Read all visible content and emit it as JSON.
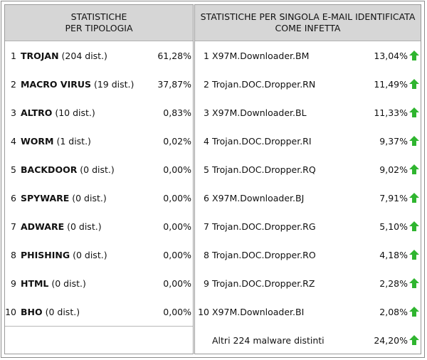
{
  "left": {
    "title_line1": "STATISTICHE",
    "title_line2": "PER TIPOLOGIA",
    "rows": [
      {
        "num": "1",
        "name": "TROJAN",
        "dist": " (204 dist.)",
        "pct": "61,28%"
      },
      {
        "num": "2",
        "name": "MACRO VIRUS",
        "dist": " (19 dist.)",
        "pct": "37,87%"
      },
      {
        "num": "3",
        "name": "ALTRO",
        "dist": " (10 dist.)",
        "pct": "0,83%"
      },
      {
        "num": "4",
        "name": "WORM",
        "dist": " (1 dist.)",
        "pct": "0,02%"
      },
      {
        "num": "5",
        "name": "BACKDOOR",
        "dist": " (0 dist.)",
        "pct": "0,00%"
      },
      {
        "num": "6",
        "name": "SPYWARE",
        "dist": " (0 dist.)",
        "pct": "0,00%"
      },
      {
        "num": "7",
        "name": "ADWARE",
        "dist": " (0 dist.)",
        "pct": "0,00%"
      },
      {
        "num": "8",
        "name": "PHISHING",
        "dist": " (0 dist.)",
        "pct": "0,00%"
      },
      {
        "num": "9",
        "name": "HTML",
        "dist": " (0 dist.)",
        "pct": "0,00%"
      },
      {
        "num": "10",
        "name": "BHO",
        "dist": " (0 dist.)",
        "pct": "0,00%"
      }
    ]
  },
  "right": {
    "title_line1": "STATISTICHE PER SINGOLA E-MAIL IDENTIFICATA",
    "title_line2": "COME INFETTA",
    "arrow_color": "#2fb52f",
    "rows": [
      {
        "num": "1",
        "name": "X97M.Downloader.BM",
        "pct": "13,04%",
        "trend": "up-arrow-icon"
      },
      {
        "num": "2",
        "name": "Trojan.DOC.Dropper.RN",
        "pct": "11,49%",
        "trend": "up-arrow-icon"
      },
      {
        "num": "3",
        "name": "X97M.Downloader.BL",
        "pct": "11,33%",
        "trend": "up-arrow-icon"
      },
      {
        "num": "4",
        "name": "Trojan.DOC.Dropper.RI",
        "pct": "9,37%",
        "trend": "up-arrow-icon"
      },
      {
        "num": "5",
        "name": "Trojan.DOC.Dropper.RQ",
        "pct": "9,02%",
        "trend": "up-arrow-icon"
      },
      {
        "num": "6",
        "name": "X97M.Downloader.BJ",
        "pct": "7,91%",
        "trend": "up-arrow-icon"
      },
      {
        "num": "7",
        "name": "Trojan.DOC.Dropper.RG",
        "pct": "5,10%",
        "trend": "up-arrow-icon"
      },
      {
        "num": "8",
        "name": "Trojan.DOC.Dropper.RO",
        "pct": "4,18%",
        "trend": "up-arrow-icon"
      },
      {
        "num": "9",
        "name": "Trojan.DOC.Dropper.RZ",
        "pct": "2,28%",
        "trend": "up-arrow-icon"
      },
      {
        "num": "10",
        "name": "X97M.Downloader.BI",
        "pct": "2,08%",
        "trend": "up-arrow-icon"
      }
    ],
    "other": {
      "name": "Altri 224 malware distinti",
      "pct": "24,20%",
      "trend": "up-arrow-icon"
    }
  }
}
